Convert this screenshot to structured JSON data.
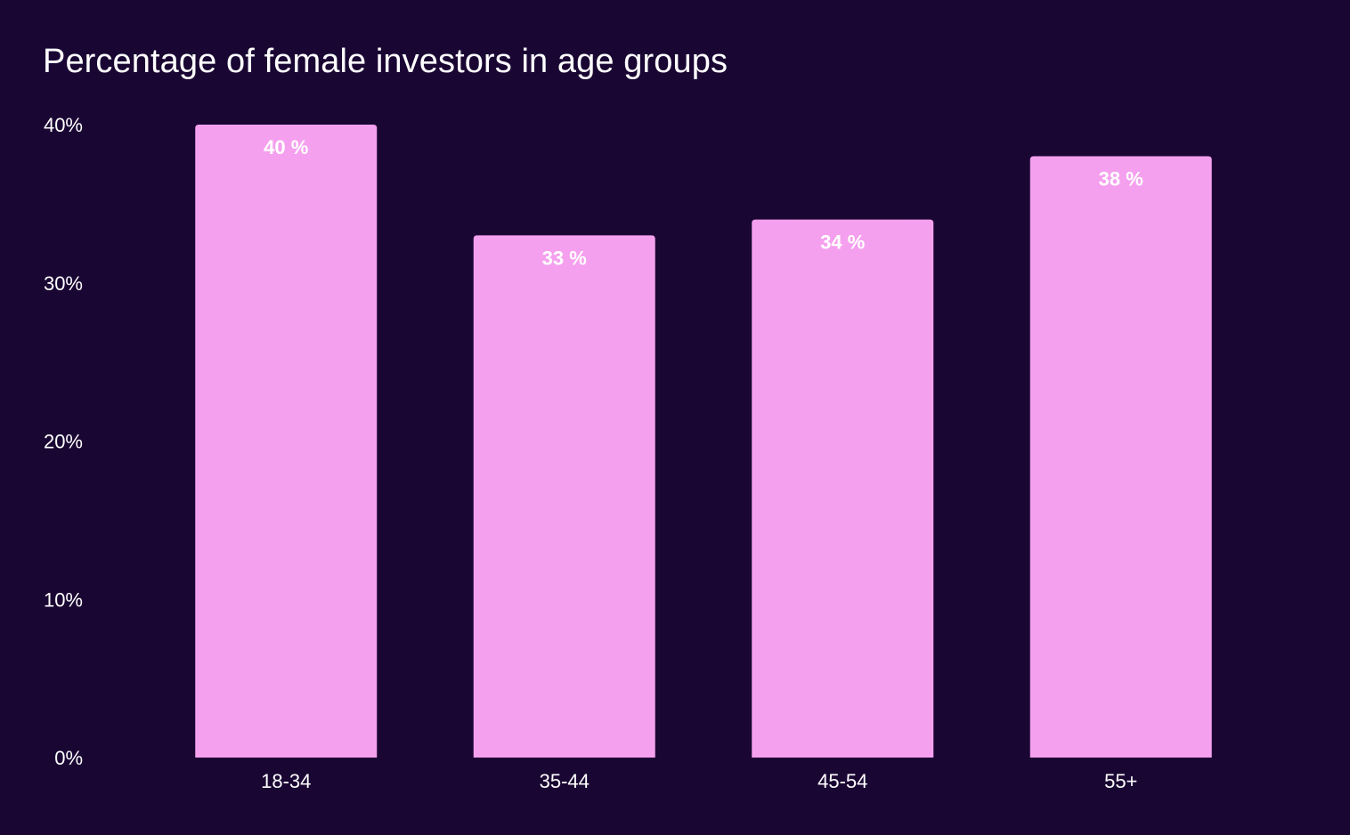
{
  "chart_data": {
    "type": "bar",
    "title": "Percentage of female investors in age groups",
    "xlabel": "",
    "ylabel": "",
    "categories": [
      "18-34",
      "35-44",
      "45-54",
      "55+"
    ],
    "values": [
      40,
      33,
      34,
      38
    ],
    "value_labels": [
      "40 %",
      "33 %",
      "34 %",
      "38 %"
    ],
    "ylim": [
      0,
      40
    ],
    "y_ticks": [
      0,
      10,
      20,
      30,
      40
    ],
    "y_tick_labels": [
      "0%",
      "10%",
      "20%",
      "30%",
      "40%"
    ],
    "grid": false,
    "legend": "none",
    "colors": {
      "background": "#1a0633",
      "bar": "#f5a0ee",
      "text": "#ffffff"
    }
  }
}
